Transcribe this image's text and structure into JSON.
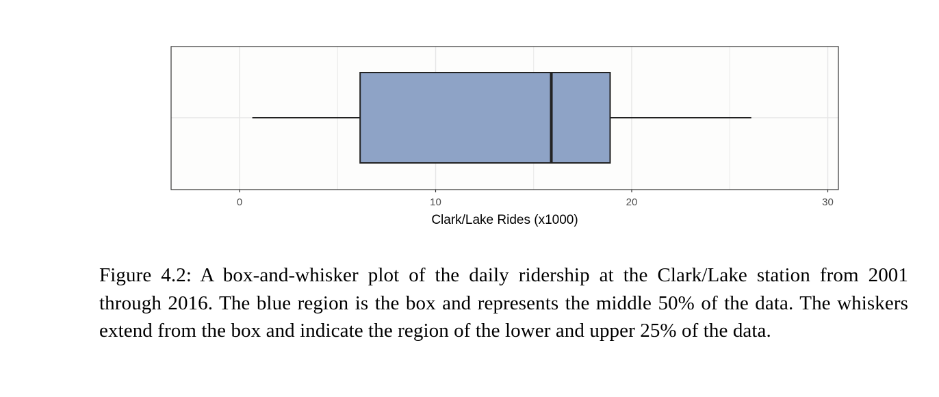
{
  "chart_data": {
    "type": "boxplot",
    "orientation": "horizontal",
    "xlabel": "Clark/Lake Rides (x1000)",
    "xlim": [
      -3.5,
      30.5
    ],
    "ticks": [
      0,
      10,
      20,
      30
    ],
    "tick_labels": [
      "0",
      "10",
      "20",
      "30"
    ],
    "grid": true,
    "box": {
      "whisker_low": 0.65,
      "q1": 6.15,
      "median": 15.9,
      "q3": 18.9,
      "whisker_high": 26.1
    },
    "colors": {
      "box_fill": "#8ea3c6",
      "line": "#222222",
      "grid": "#e6e6e6",
      "panel_border": "#333333",
      "panel_bg": "#fdfdfc"
    }
  },
  "caption": {
    "text": "Figure 4.2: A box-and-whisker plot of the daily ridership at the Clark/Lake station from 2001 through 2016. The blue region is the box and represents the middle 50% of the data. The whiskers extend from the box and indicate the region of the lower and upper 25% of the data."
  }
}
